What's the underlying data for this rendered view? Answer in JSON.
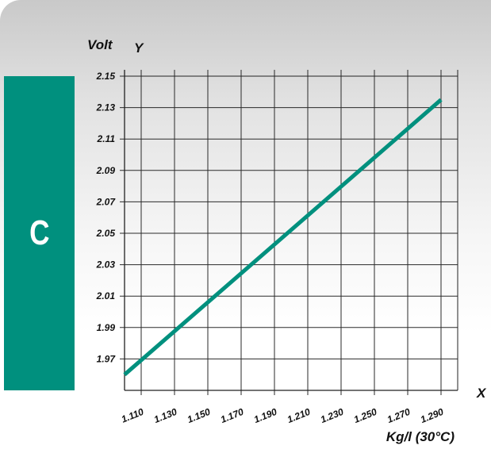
{
  "panel": {
    "letter": "C"
  },
  "chart_data": {
    "type": "line",
    "ylabel": "Volt",
    "xlabel": "Kg/l (30°C)",
    "x_axis_letter": "X",
    "y_axis_letter": "Y",
    "x_ticks": [
      "1.110",
      "1.130",
      "1.150",
      "1.170",
      "1.190",
      "1.210",
      "1.230",
      "1.250",
      "1.270",
      "1.290"
    ],
    "y_ticks": [
      "2.15",
      "2.13",
      "2.11",
      "2.09",
      "2.07",
      "2.05",
      "2.03",
      "2.01",
      "1.99",
      "1.97"
    ],
    "xlim": [
      1.1,
      1.3
    ],
    "ylim": [
      1.95,
      2.15
    ],
    "grid": true,
    "series": [
      {
        "x": [
          1.1,
          1.29
        ],
        "y": [
          1.96,
          2.135
        ],
        "color": "#00907e"
      }
    ]
  }
}
